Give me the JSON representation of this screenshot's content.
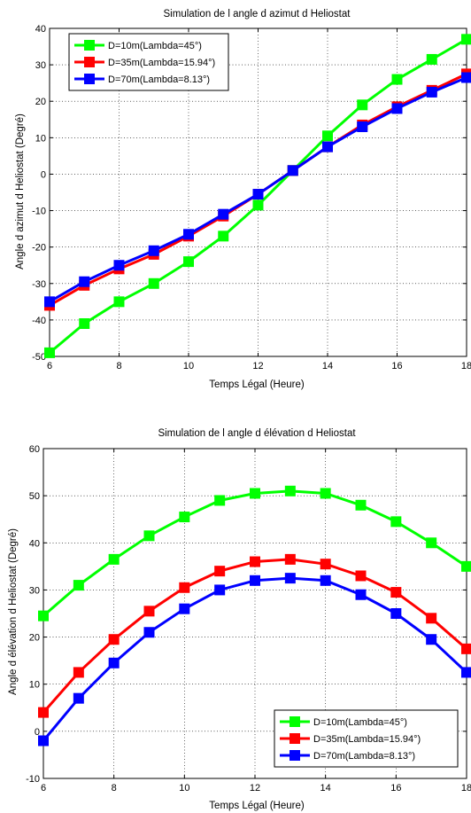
{
  "chart_data": [
    {
      "type": "line",
      "title": "Simulation de l angle d azimut d Heliostat",
      "xlabel": "Temps Légal (Heure)",
      "ylabel": "Angle d azimut d Heliostat (Degré)",
      "xlim": [
        6,
        18
      ],
      "ylim": [
        -50,
        40
      ],
      "xticks": [
        6,
        8,
        10,
        12,
        14,
        16,
        18
      ],
      "yticks": [
        -50,
        -40,
        -30,
        -20,
        -10,
        0,
        10,
        20,
        30,
        40
      ],
      "grid": true,
      "legend_position": "top-left",
      "x": [
        6,
        7,
        8,
        9,
        10,
        11,
        12,
        13,
        14,
        15,
        16,
        17,
        18
      ],
      "series": [
        {
          "name": "D=10m(Lambda=45°)",
          "color": "#00ff00",
          "values": [
            -49,
            -41,
            -35,
            -30,
            -24,
            -17,
            -8.5,
            1,
            10.5,
            19,
            26,
            31.5,
            37
          ]
        },
        {
          "name": "D=35m(Lambda=15.94°)",
          "color": "#ff0000",
          "values": [
            -36,
            -30.5,
            -26,
            -22,
            -17,
            -11.5,
            -5.5,
            1,
            7.5,
            13.5,
            18.5,
            23,
            27.5
          ]
        },
        {
          "name": "D=70m(Lambda=8.13°)",
          "color": "#0000ff",
          "values": [
            -35,
            -29.5,
            -25,
            -21,
            -16.5,
            -11,
            -5.5,
            1,
            7.5,
            13,
            18,
            22.5,
            26.5
          ]
        }
      ]
    },
    {
      "type": "line",
      "title": "Simulation de l angle d élévation d Heliostat",
      "xlabel": "Temps Légal (Heure)",
      "ylabel": "Angle d élévation d Heliostat (Degré)",
      "xlim": [
        6,
        18
      ],
      "ylim": [
        -10,
        60
      ],
      "xticks": [
        6,
        8,
        10,
        12,
        14,
        16,
        18
      ],
      "yticks": [
        -10,
        0,
        10,
        20,
        30,
        40,
        50,
        60
      ],
      "grid": true,
      "legend_position": "bottom-right",
      "x": [
        6,
        7,
        8,
        9,
        10,
        11,
        12,
        13,
        14,
        15,
        16,
        17,
        18
      ],
      "series": [
        {
          "name": "D=10m(Lambda=45°)",
          "color": "#00ff00",
          "values": [
            24.5,
            31,
            36.5,
            41.5,
            45.5,
            49,
            50.5,
            51,
            50.5,
            48,
            44.5,
            40,
            35
          ]
        },
        {
          "name": "D=35m(Lambda=15.94°)",
          "color": "#ff0000",
          "values": [
            4,
            12.5,
            19.5,
            25.5,
            30.5,
            34,
            36,
            36.5,
            35.5,
            33,
            29.5,
            24,
            17.5
          ]
        },
        {
          "name": "D=70m(Lambda=8.13°)",
          "color": "#0000ff",
          "values": [
            -2,
            7,
            14.5,
            21,
            26,
            30,
            32,
            32.5,
            32,
            29,
            25,
            19.5,
            12.5
          ]
        }
      ]
    }
  ]
}
